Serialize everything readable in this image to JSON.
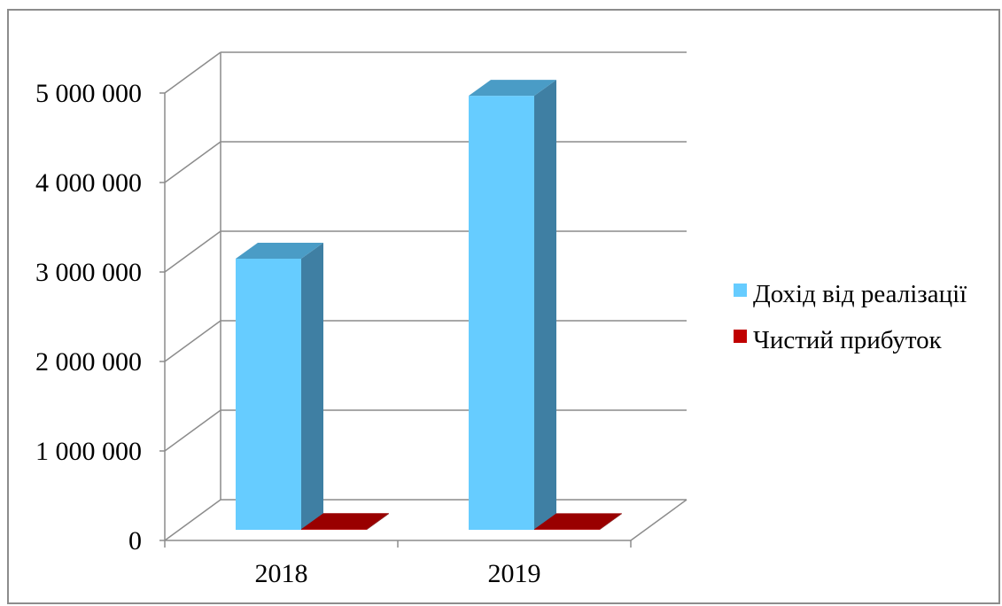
{
  "chart_data": {
    "type": "bar",
    "three_d": true,
    "title": "",
    "xlabel": "",
    "ylabel": "",
    "categories": [
      "2018",
      "2019"
    ],
    "series": [
      {
        "name": "Дохід від реалізації",
        "values": [
          3030000,
          4850000
        ],
        "color": "#66ccff",
        "side_color": "#3f7fa3",
        "top_color": "#4a9cc6"
      },
      {
        "name": "Чистий прибуток",
        "values": [
          8000,
          6000
        ],
        "color": "#c00000",
        "side_color": "#6b0000",
        "top_color": "#990000"
      }
    ],
    "ylim": [
      0,
      5000000
    ],
    "yticks": [
      0,
      1000000,
      2000000,
      3000000,
      4000000,
      5000000
    ],
    "ytick_labels": [
      "0",
      "1 000 000",
      "2 000 000",
      "3 000 000",
      "4 000 000",
      "5 000 000"
    ],
    "grid": true,
    "legend_position": "right"
  }
}
